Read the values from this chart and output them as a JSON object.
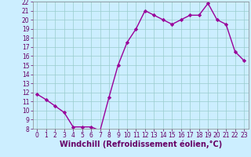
{
  "x": [
    0,
    1,
    2,
    3,
    4,
    5,
    6,
    7,
    8,
    9,
    10,
    11,
    12,
    13,
    14,
    15,
    16,
    17,
    18,
    19,
    20,
    21,
    22,
    23
  ],
  "y": [
    11.8,
    11.2,
    10.5,
    9.8,
    8.2,
    8.2,
    8.2,
    7.8,
    11.5,
    15.0,
    17.5,
    19.0,
    21.0,
    20.5,
    20.0,
    19.5,
    20.0,
    20.5,
    20.5,
    21.8,
    20.0,
    19.5,
    16.5,
    15.5
  ],
  "line_color": "#990099",
  "marker": "D",
  "marker_size": 2.2,
  "bg_color": "#cceeff",
  "grid_color": "#99cccc",
  "xlabel": "Windchill (Refroidissement éolien,°C)",
  "xlabel_color": "#660066",
  "ylim": [
    8,
    22
  ],
  "xlim": [
    -0.5,
    23.5
  ],
  "yticks": [
    8,
    9,
    10,
    11,
    12,
    13,
    14,
    15,
    16,
    17,
    18,
    19,
    20,
    21,
    22
  ],
  "xticks": [
    0,
    1,
    2,
    3,
    4,
    5,
    6,
    7,
    8,
    9,
    10,
    11,
    12,
    13,
    14,
    15,
    16,
    17,
    18,
    19,
    20,
    21,
    22,
    23
  ],
  "tick_color": "#660066",
  "tick_label_fontsize": 5.5,
  "xlabel_fontsize": 7.0,
  "spine_color": "#888888",
  "line_color_hex": "#990099",
  "line_width": 1.0
}
